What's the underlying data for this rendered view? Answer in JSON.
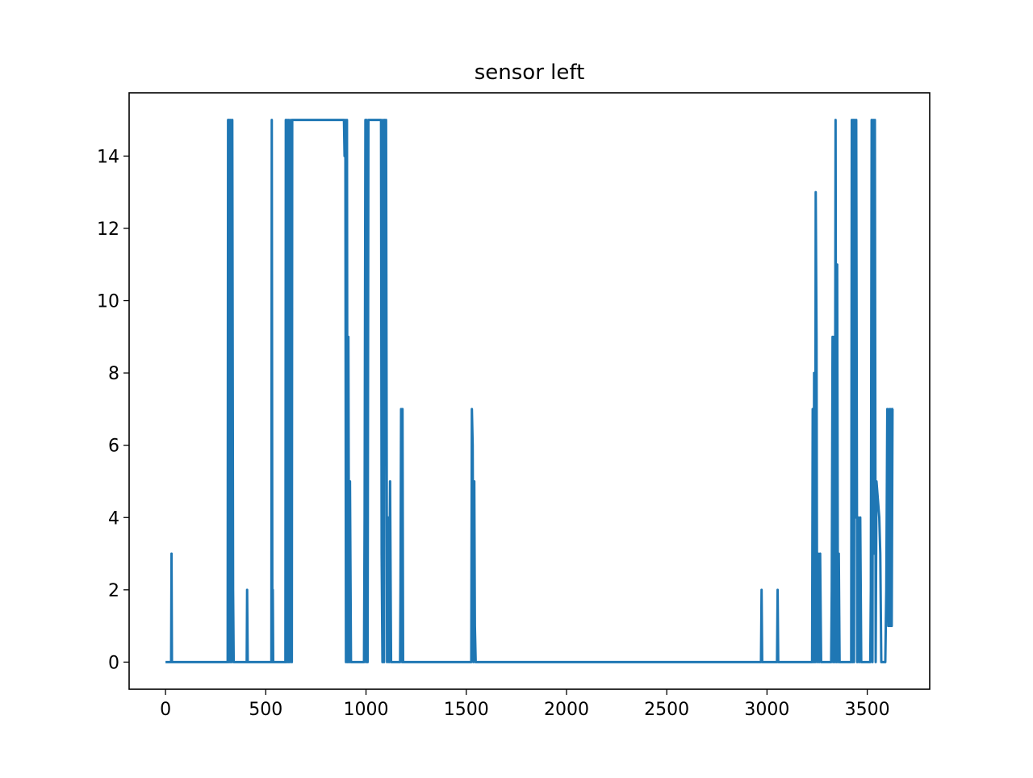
{
  "chart_data": {
    "type": "line",
    "title": "sensor left",
    "x": [
      0,
      28,
      30,
      32,
      310,
      312,
      316,
      318,
      322,
      325,
      330,
      333,
      337,
      340,
      405,
      407,
      410,
      528,
      530,
      533,
      535,
      537,
      598,
      600,
      603,
      607,
      612,
      615,
      620,
      625,
      630,
      632,
      890,
      893,
      897,
      900,
      905,
      908,
      912,
      916,
      920,
      925,
      990,
      993,
      997,
      1000,
      1003,
      1008,
      1012,
      1075,
      1078,
      1082,
      1085,
      1090,
      1093,
      1097,
      1100,
      1105,
      1110,
      1115,
      1120,
      1125,
      1170,
      1172,
      1175,
      1180,
      1182,
      1185,
      1525,
      1528,
      1532,
      1536,
      1540,
      1543,
      1547,
      2970,
      2973,
      2976,
      3050,
      3053,
      3056,
      3225,
      3228,
      3232,
      3235,
      3240,
      3243,
      3247,
      3250,
      3255,
      3260,
      3265,
      3270,
      3320,
      3323,
      3327,
      3330,
      3334,
      3338,
      3342,
      3346,
      3350,
      3354,
      3358,
      3362,
      3420,
      3423,
      3427,
      3430,
      3434,
      3437,
      3440,
      3445,
      3450,
      3455,
      3460,
      3465,
      3470,
      3515,
      3518,
      3522,
      3526,
      3530,
      3534,
      3538,
      3542,
      3546,
      3560,
      3565,
      3570,
      3590,
      3595,
      3600,
      3605,
      3610,
      3614,
      3618,
      3622,
      3626,
      3630
    ],
    "series": [
      {
        "color": "#1f77b4",
        "values": [
          0,
          0,
          3,
          0,
          0,
          15,
          0,
          15,
          0,
          15,
          0,
          15,
          2,
          0,
          0,
          2,
          0,
          0,
          15,
          0,
          2,
          0,
          0,
          15,
          0,
          15,
          0,
          15,
          0,
          15,
          0,
          15,
          15,
          14,
          15,
          0,
          15,
          0,
          9,
          0,
          5,
          0,
          0,
          4,
          15,
          0,
          15,
          0,
          15,
          15,
          3,
          0,
          15,
          0,
          15,
          6,
          15,
          0,
          4,
          0,
          5,
          0,
          0,
          2,
          7,
          0,
          7,
          0,
          0,
          7,
          6,
          0,
          5,
          1,
          0,
          0,
          2,
          0,
          0,
          2,
          0,
          0,
          7,
          0,
          8,
          0,
          13,
          9,
          0,
          3,
          0,
          3,
          0,
          0,
          2,
          9,
          0,
          9,
          0,
          15,
          0,
          11,
          0,
          3,
          0,
          0,
          15,
          0,
          15,
          0,
          15,
          4,
          15,
          0,
          4,
          0,
          4,
          0,
          0,
          2,
          15,
          0,
          15,
          3,
          15,
          0,
          5,
          4,
          3,
          0,
          0,
          2,
          7,
          1,
          7,
          1,
          7,
          1,
          7,
          7
        ]
      }
    ],
    "xlim": [
      -181.5,
      3811.5
    ],
    "ylim": [
      -0.75,
      15.75
    ],
    "xticks": [
      0,
      500,
      1000,
      1500,
      2000,
      2500,
      3000,
      3500
    ],
    "yticks": [
      0,
      2,
      4,
      6,
      8,
      10,
      12,
      14
    ]
  }
}
